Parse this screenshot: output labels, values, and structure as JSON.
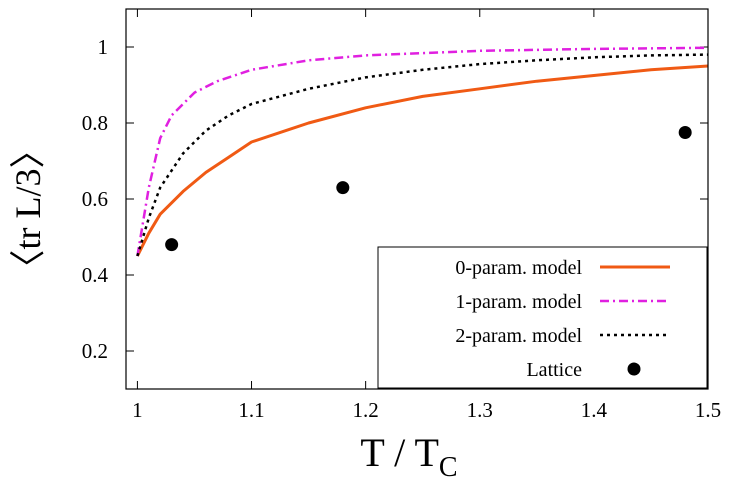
{
  "chart_data": {
    "type": "line",
    "xlabel": "T / T",
    "xlabel_subscript": "C",
    "ylabel": "〈tr L/3〉",
    "xlim": [
      0.99,
      1.5
    ],
    "ylim": [
      0.1,
      1.1
    ],
    "xticks": [
      1,
      1.1,
      1.2,
      1.3,
      1.4,
      1.5
    ],
    "yticks": [
      0.2,
      0.4,
      0.6,
      0.8,
      1
    ],
    "xtick_labels": [
      "1",
      "1.1",
      "1.2",
      "1.3",
      "1.4",
      "1.5"
    ],
    "ytick_labels": [
      "0.2",
      "0.4",
      "0.6",
      "0.8",
      "1"
    ],
    "grid": false,
    "legend_position": "bottom-right",
    "series": [
      {
        "name": "0-param. model",
        "style": "solid",
        "color": "#f05a14",
        "x": [
          1.0,
          1.01,
          1.02,
          1.04,
          1.06,
          1.08,
          1.1,
          1.15,
          1.2,
          1.25,
          1.3,
          1.35,
          1.4,
          1.45,
          1.5
        ],
        "y": [
          0.45,
          0.51,
          0.56,
          0.62,
          0.67,
          0.71,
          0.75,
          0.8,
          0.84,
          0.87,
          0.89,
          0.91,
          0.925,
          0.94,
          0.95
        ]
      },
      {
        "name": "1-param. model",
        "style": "dashdot",
        "color": "#e020e0",
        "x": [
          1.0,
          1.01,
          1.02,
          1.03,
          1.05,
          1.07,
          1.1,
          1.15,
          1.2,
          1.3,
          1.4,
          1.5
        ],
        "y": [
          0.45,
          0.63,
          0.76,
          0.82,
          0.88,
          0.91,
          0.94,
          0.965,
          0.978,
          0.99,
          0.995,
          0.998
        ]
      },
      {
        "name": "2-param. model",
        "style": "dotted",
        "color": "#000000",
        "x": [
          1.0,
          1.01,
          1.02,
          1.04,
          1.06,
          1.08,
          1.1,
          1.15,
          1.2,
          1.25,
          1.3,
          1.35,
          1.4,
          1.45,
          1.5
        ],
        "y": [
          0.45,
          0.55,
          0.63,
          0.72,
          0.78,
          0.82,
          0.85,
          0.89,
          0.92,
          0.94,
          0.955,
          0.965,
          0.973,
          0.978,
          0.98
        ]
      },
      {
        "name": "Lattice",
        "style": "points",
        "color": "#000000",
        "x": [
          1.03,
          1.18,
          1.48
        ],
        "y": [
          0.48,
          0.63,
          0.775
        ]
      }
    ]
  }
}
